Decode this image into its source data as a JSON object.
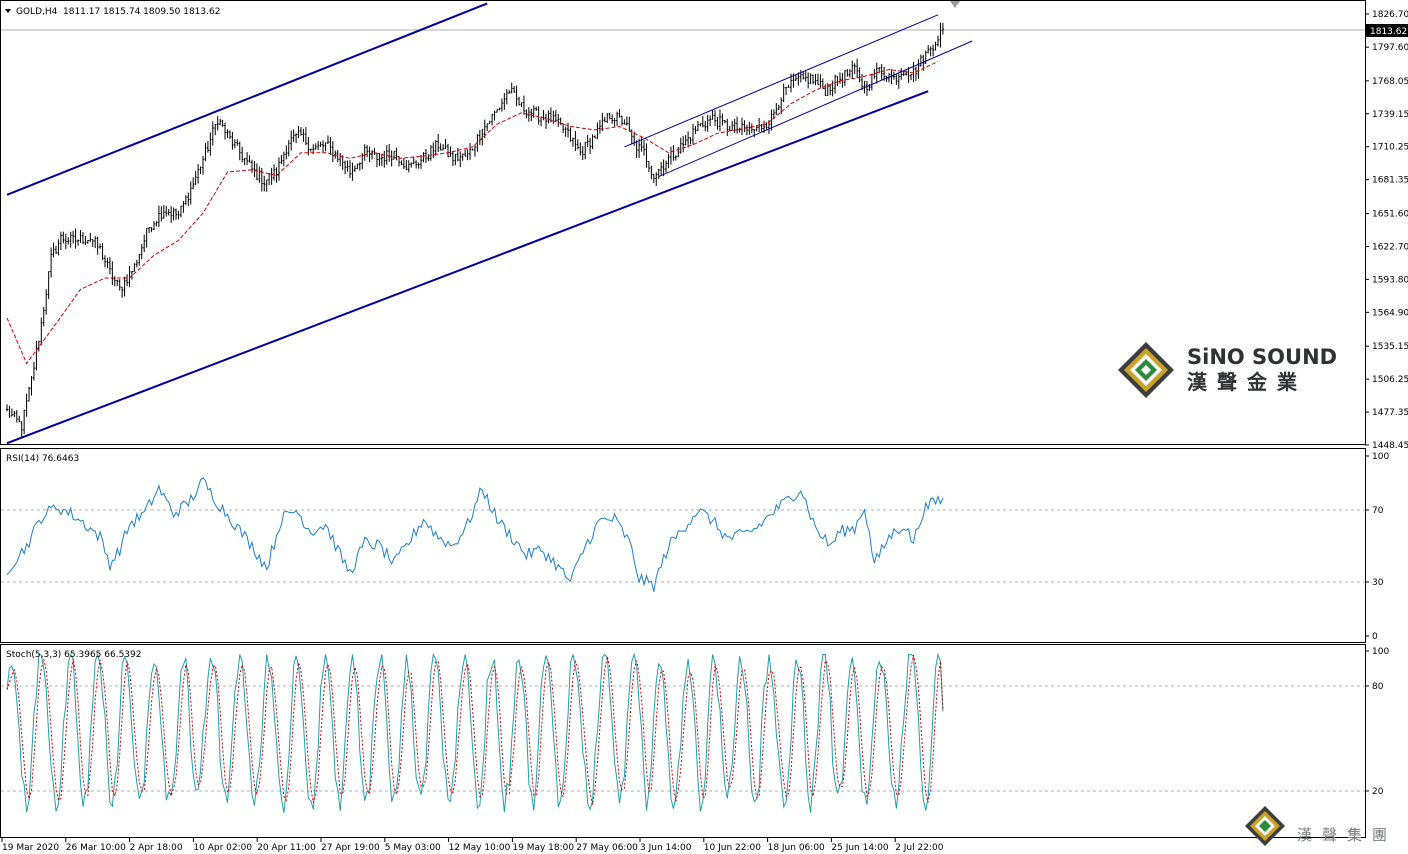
{
  "header": {
    "symbol": "GOLD,H4",
    "ohlc": "1811.17 1815.74 1809.50 1813.62",
    "rsi_label": "RSI(14) 76.6463",
    "stoch_label": "Stoch(5,3,3) 65.3965 66.5392"
  },
  "price_axis": {
    "ticks": [
      "1826.70",
      "1797.60",
      "1768.05",
      "1739.15",
      "1710.25",
      "1681.35",
      "1651.60",
      "1622.70",
      "1593.80",
      "1564.90",
      "1535.15",
      "1506.25",
      "1477.35",
      "1448.45"
    ],
    "current_price": "1813.62"
  },
  "rsi_axis": {
    "ticks": [
      "100",
      "70",
      "30",
      "0"
    ]
  },
  "stoch_axis": {
    "ticks": [
      "100",
      "80",
      "20"
    ]
  },
  "time_axis": {
    "ticks": [
      "19 Mar 2020",
      "26 Mar 10:00",
      "2 Apr 18:00",
      "10 Apr 02:00",
      "20 Apr 11:00",
      "27 Apr 19:00",
      "5 May 03:00",
      "12 May 10:00",
      "19 May 18:00",
      "27 May 06:00",
      "3 Jun 14:00",
      "10 Jun 22:00",
      "18 Jun 06:00",
      "25 Jun 14:00",
      "2 Jul 22:00"
    ]
  },
  "watermark": {
    "en": "SiNO SOUND",
    "cn": "漢聲金業",
    "cn_small": "漢聲集團"
  },
  "colors": {
    "candle": "#000000",
    "ma": "#cc0000",
    "channel": "#000099",
    "rsi": "#1e7fc8",
    "stoch_main": "#20a0a8",
    "stoch_signal": "#cc0000",
    "level_line": "#b0b0b0"
  },
  "chart_data": [
    {
      "type": "candlestick",
      "title": "GOLD,H4",
      "ylim": [
        1443,
        1838
      ],
      "y_ticks": [
        1826.7,
        1797.6,
        1768.05,
        1739.15,
        1710.25,
        1681.35,
        1651.6,
        1622.7,
        1593.8,
        1564.9,
        1535.15,
        1506.25,
        1477.35,
        1448.45
      ],
      "close_anchors": [
        [
          0,
          1478
        ],
        [
          6,
          1465
        ],
        [
          10,
          1505
        ],
        [
          14,
          1555
        ],
        [
          18,
          1612
        ],
        [
          22,
          1630
        ],
        [
          27,
          1628
        ],
        [
          34,
          1630
        ],
        [
          38,
          1620
        ],
        [
          42,
          1600
        ],
        [
          46,
          1585
        ],
        [
          52,
          1605
        ],
        [
          58,
          1640
        ],
        [
          64,
          1655
        ],
        [
          70,
          1650
        ],
        [
          76,
          1678
        ],
        [
          82,
          1710
        ],
        [
          86,
          1735
        ],
        [
          90,
          1720
        ],
        [
          95,
          1705
        ],
        [
          100,
          1690
        ],
        [
          105,
          1680
        ],
        [
          110,
          1688
        ],
        [
          115,
          1715
        ],
        [
          120,
          1720
        ],
        [
          125,
          1708
        ],
        [
          130,
          1712
        ],
        [
          136,
          1700
        ],
        [
          140,
          1688
        ],
        [
          146,
          1705
        ],
        [
          152,
          1700
        ],
        [
          158,
          1705
        ],
        [
          164,
          1692
        ],
        [
          170,
          1700
        ],
        [
          176,
          1712
        ],
        [
          182,
          1700
        ],
        [
          188,
          1702
        ],
        [
          194,
          1725
        ],
        [
          200,
          1742
        ],
        [
          205,
          1760
        ],
        [
          210,
          1745
        ],
        [
          216,
          1738
        ],
        [
          222,
          1735
        ],
        [
          228,
          1724
        ],
        [
          234,
          1705
        ],
        [
          240,
          1720
        ],
        [
          246,
          1738
        ],
        [
          252,
          1732
        ],
        [
          256,
          1712
        ],
        [
          260,
          1705
        ],
        [
          264,
          1685
        ],
        [
          270,
          1700
        ],
        [
          276,
          1712
        ],
        [
          282,
          1728
        ],
        [
          288,
          1735
        ],
        [
          294,
          1728
        ],
        [
          300,
          1725
        ],
        [
          306,
          1725
        ],
        [
          312,
          1735
        ],
        [
          316,
          1755
        ],
        [
          322,
          1768
        ],
        [
          328,
          1770
        ],
        [
          334,
          1760
        ],
        [
          340,
          1770
        ],
        [
          346,
          1778
        ],
        [
          350,
          1762
        ],
        [
          356,
          1778
        ],
        [
          362,
          1770
        ],
        [
          366,
          1778
        ],
        [
          370,
          1775
        ],
        [
          374,
          1788
        ],
        [
          378,
          1800
        ],
        [
          382,
          1814
        ]
      ],
      "ma_anchors": [
        [
          0,
          1560
        ],
        [
          8,
          1520
        ],
        [
          20,
          1555
        ],
        [
          30,
          1585
        ],
        [
          40,
          1595
        ],
        [
          50,
          1595
        ],
        [
          60,
          1615
        ],
        [
          70,
          1628
        ],
        [
          80,
          1652
        ],
        [
          90,
          1688
        ],
        [
          100,
          1690
        ],
        [
          110,
          1685
        ],
        [
          120,
          1705
        ],
        [
          130,
          1705
        ],
        [
          140,
          1700
        ],
        [
          150,
          1705
        ],
        [
          160,
          1700
        ],
        [
          170,
          1702
        ],
        [
          180,
          1705
        ],
        [
          190,
          1710
        ],
        [
          200,
          1730
        ],
        [
          210,
          1740
        ],
        [
          220,
          1735
        ],
        [
          230,
          1728
        ],
        [
          240,
          1725
        ],
        [
          250,
          1728
        ],
        [
          260,
          1718
        ],
        [
          270,
          1705
        ],
        [
          280,
          1712
        ],
        [
          290,
          1722
        ],
        [
          300,
          1726
        ],
        [
          310,
          1730
        ],
        [
          320,
          1748
        ],
        [
          330,
          1760
        ],
        [
          340,
          1768
        ],
        [
          350,
          1772
        ],
        [
          360,
          1778
        ],
        [
          370,
          1775
        ],
        [
          380,
          1785
        ]
      ],
      "channel_lines": [
        {
          "name": "outer-upper",
          "start": [
            0,
            1668
          ],
          "end": [
            196,
            1836
          ]
        },
        {
          "name": "outer-lower",
          "start": [
            0,
            1450
          ],
          "end": [
            376,
            1759
          ]
        },
        {
          "name": "inner-upper",
          "start": [
            252,
            1710
          ],
          "end": [
            380,
            1826
          ]
        },
        {
          "name": "inner-lower",
          "start": [
            266,
            1684
          ],
          "end": [
            394,
            1803
          ]
        }
      ]
    },
    {
      "type": "line",
      "title": "RSI(14) 76.6463",
      "ylim": [
        0,
        100
      ],
      "levels": [
        70,
        30
      ],
      "series": [
        {
          "name": "RSI(14)",
          "anchors": [
            [
              0,
              37
            ],
            [
              8,
              50
            ],
            [
              14,
              66
            ],
            [
              20,
              72
            ],
            [
              26,
              68
            ],
            [
              32,
              62
            ],
            [
              38,
              55
            ],
            [
              42,
              40
            ],
            [
              46,
              48
            ],
            [
              50,
              62
            ],
            [
              56,
              68
            ],
            [
              62,
              82
            ],
            [
              68,
              68
            ],
            [
              74,
              74
            ],
            [
              80,
              86
            ],
            [
              86,
              74
            ],
            [
              92,
              64
            ],
            [
              100,
              50
            ],
            [
              106,
              38
            ],
            [
              112,
              65
            ],
            [
              118,
              70
            ],
            [
              124,
              58
            ],
            [
              130,
              62
            ],
            [
              136,
              45
            ],
            [
              140,
              35
            ],
            [
              146,
              52
            ],
            [
              152,
              50
            ],
            [
              158,
              40
            ],
            [
              164,
              52
            ],
            [
              170,
              65
            ],
            [
              176,
              55
            ],
            [
              182,
              50
            ],
            [
              188,
              62
            ],
            [
              194,
              82
            ],
            [
              200,
              65
            ],
            [
              206,
              55
            ],
            [
              212,
              45
            ],
            [
              218,
              48
            ],
            [
              224,
              40
            ],
            [
              230,
              30
            ],
            [
              236,
              50
            ],
            [
              242,
              64
            ],
            [
              248,
              65
            ],
            [
              254,
              52
            ],
            [
              258,
              32
            ],
            [
              264,
              28
            ],
            [
              270,
              50
            ],
            [
              276,
              60
            ],
            [
              282,
              70
            ],
            [
              288,
              64
            ],
            [
              294,
              54
            ],
            [
              300,
              56
            ],
            [
              306,
              60
            ],
            [
              312,
              68
            ],
            [
              318,
              75
            ],
            [
              324,
              82
            ],
            [
              330,
              60
            ],
            [
              336,
              50
            ],
            [
              340,
              58
            ],
            [
              346,
              60
            ],
            [
              350,
              72
            ],
            [
              354,
              40
            ],
            [
              360,
              55
            ],
            [
              366,
              62
            ],
            [
              370,
              52
            ],
            [
              374,
              70
            ],
            [
              378,
              74
            ],
            [
              382,
              76.6
            ]
          ]
        }
      ]
    },
    {
      "type": "line",
      "title": "Stoch(5,3,3) 65.3965 66.5392",
      "ylim": [
        0,
        100
      ],
      "levels": [
        80,
        20
      ],
      "series": [
        {
          "name": "Stoch main"
        },
        {
          "name": "Stoch signal"
        }
      ]
    }
  ]
}
